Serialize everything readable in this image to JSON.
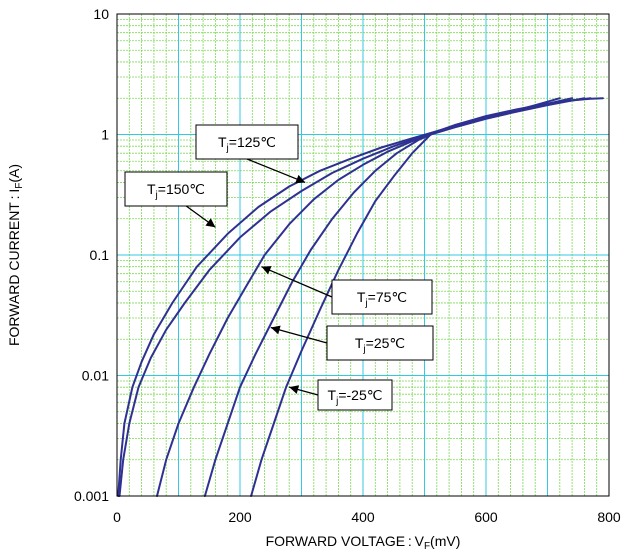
{
  "chart_data": {
    "type": "line",
    "x_axis": {
      "label_main": "FORWARD VOLTAGE : V",
      "label_sub": "F",
      "label_unit": "(mV)",
      "range": [
        0,
        800
      ],
      "ticks": [
        "0",
        "200",
        "400",
        "600",
        "800"
      ]
    },
    "y_axis": {
      "label_main": "FORWARD CURRENT : I",
      "label_sub": "F",
      "label_unit": "(A)",
      "scale": "log",
      "range": [
        0.001,
        10
      ],
      "ticks": [
        "0.001",
        "0.01",
        "0.1",
        "1",
        "10"
      ]
    },
    "grid": true,
    "colors": {
      "series": "#2e3192",
      "major_grid": "#33c9e0",
      "minor_grid": "#7ed957",
      "frame": "#000000"
    },
    "series": [
      {
        "label": "125",
        "x": [
          4,
          10,
          20,
          35,
          55,
          80,
          110,
          150,
          200,
          250,
          300,
          350,
          400,
          450,
          500,
          550,
          600,
          650,
          700,
          740
        ],
        "y": [
          0.001,
          0.002,
          0.004,
          0.008,
          0.014,
          0.024,
          0.04,
          0.075,
          0.14,
          0.23,
          0.34,
          0.48,
          0.63,
          0.8,
          0.98,
          1.2,
          1.4,
          1.6,
          1.8,
          2.0
        ]
      },
      {
        "label": "150",
        "x": [
          2,
          6,
          12,
          25,
          40,
          60,
          90,
          130,
          180,
          230,
          280,
          330,
          380,
          430,
          480,
          530,
          580,
          630,
          680,
          720
        ],
        "y": [
          0.001,
          0.002,
          0.004,
          0.008,
          0.013,
          0.022,
          0.04,
          0.08,
          0.15,
          0.25,
          0.37,
          0.5,
          0.63,
          0.78,
          0.93,
          1.1,
          1.3,
          1.5,
          1.75,
          2.0
        ]
      },
      {
        "label": "75",
        "x": [
          65,
          80,
          100,
          125,
          150,
          180,
          210,
          240,
          280,
          320,
          360,
          400,
          440,
          480,
          510,
          550,
          600,
          650,
          700,
          760
        ],
        "y": [
          0.001,
          0.002,
          0.004,
          0.008,
          0.015,
          0.03,
          0.055,
          0.1,
          0.18,
          0.29,
          0.42,
          0.56,
          0.72,
          0.88,
          1.0,
          1.15,
          1.35,
          1.55,
          1.75,
          2.0
        ]
      },
      {
        "label": "25",
        "x": [
          143,
          160,
          180,
          200,
          225,
          255,
          285,
          315,
          350,
          385,
          420,
          455,
          490,
          520,
          560,
          600,
          650,
          700,
          740,
          770
        ],
        "y": [
          0.001,
          0.002,
          0.004,
          0.008,
          0.015,
          0.03,
          0.06,
          0.11,
          0.2,
          0.33,
          0.5,
          0.7,
          0.9,
          1.05,
          1.22,
          1.4,
          1.6,
          1.8,
          1.92,
          2.0
        ]
      },
      {
        "label": "-25",
        "x": [
          218,
          235,
          255,
          275,
          300,
          330,
          360,
          390,
          420,
          450,
          480,
          510,
          550,
          600,
          650,
          700,
          740,
          770,
          790
        ],
        "y": [
          0.001,
          0.002,
          0.004,
          0.008,
          0.016,
          0.035,
          0.075,
          0.15,
          0.28,
          0.45,
          0.7,
          1.0,
          1.2,
          1.42,
          1.62,
          1.8,
          1.92,
          1.98,
          2.0
        ]
      }
    ],
    "annotations": [
      {
        "t": "T",
        "sub": "j",
        "rest": "=125℃",
        "tip_x": 306,
        "tip_y": 0.4
      },
      {
        "t": "T",
        "sub": "j",
        "rest": "=150℃",
        "tip_x": 160,
        "tip_y": 0.17
      },
      {
        "t": "T",
        "sub": "j",
        "rest": "=75℃",
        "tip_x": 235,
        "tip_y": 0.08
      },
      {
        "t": "T",
        "sub": "j",
        "rest": "=25℃",
        "tip_x": 250,
        "tip_y": 0.025
      },
      {
        "t": "T",
        "sub": "j",
        "rest": "=-25℃",
        "tip_x": 280,
        "tip_y": 0.008
      }
    ]
  }
}
